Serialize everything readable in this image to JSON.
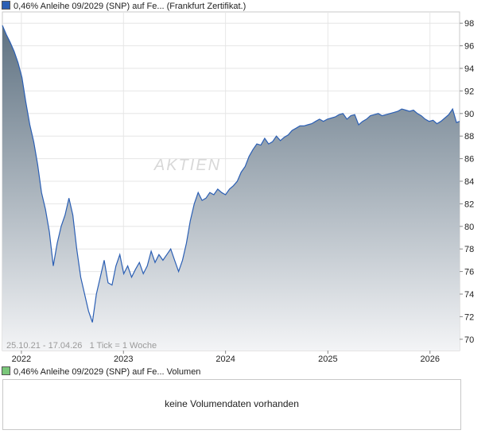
{
  "header": {
    "price_legend": "0,46% Anleihe 09/2029 (SNP) auf Fe... (Frankfurt Zertifikat.)",
    "volume_legend": "0,46% Anleihe 09/2029 (SNP) auf Fe... Volumen"
  },
  "colors": {
    "price_swatch": "#2b5fb4",
    "volume_swatch": "#7ac77a",
    "line": "#2b5fb4",
    "fill_top": "#5f7282",
    "fill_bottom": "#f3f4f6"
  },
  "watermark": "AKTIEN",
  "info_text": "25.10.21 - 17.04.26   1 Tick = 1 Woche",
  "volume_panel": {
    "message": "keine Volumendaten vorhanden"
  },
  "chart_data": {
    "type": "area",
    "x_tick_labels": [
      "2022",
      "2023",
      "2024",
      "2025",
      "2026"
    ],
    "y_ticks": [
      70,
      72,
      74,
      76,
      78,
      80,
      82,
      84,
      86,
      88,
      90,
      92,
      94,
      96,
      98
    ],
    "ylim": [
      69.0,
      99.0
    ],
    "xlim": [
      "2021-10-25",
      "2026-04-17"
    ],
    "grid": true,
    "x": [
      "2021-10-25",
      "2021-11-08",
      "2021-11-22",
      "2021-12-06",
      "2021-12-20",
      "2022-01-03",
      "2022-01-17",
      "2022-01-31",
      "2022-02-14",
      "2022-02-28",
      "2022-03-14",
      "2022-03-28",
      "2022-04-11",
      "2022-04-25",
      "2022-05-09",
      "2022-05-23",
      "2022-06-06",
      "2022-06-20",
      "2022-07-04",
      "2022-07-18",
      "2022-08-01",
      "2022-08-15",
      "2022-08-29",
      "2022-09-12",
      "2022-09-26",
      "2022-10-10",
      "2022-10-24",
      "2022-11-07",
      "2022-11-21",
      "2022-12-05",
      "2022-12-19",
      "2023-01-02",
      "2023-01-16",
      "2023-01-30",
      "2023-02-13",
      "2023-02-27",
      "2023-03-13",
      "2023-03-27",
      "2023-04-10",
      "2023-04-24",
      "2023-05-08",
      "2023-05-22",
      "2023-06-05",
      "2023-06-19",
      "2023-07-03",
      "2023-07-17",
      "2023-07-31",
      "2023-08-14",
      "2023-08-28",
      "2023-09-11",
      "2023-09-25",
      "2023-10-09",
      "2023-10-23",
      "2023-11-06",
      "2023-11-20",
      "2023-12-04",
      "2023-12-18",
      "2024-01-01",
      "2024-01-15",
      "2024-01-29",
      "2024-02-12",
      "2024-02-26",
      "2024-03-11",
      "2024-03-25",
      "2024-04-08",
      "2024-04-22",
      "2024-05-06",
      "2024-05-20",
      "2024-06-03",
      "2024-06-17",
      "2024-07-01",
      "2024-07-15",
      "2024-07-29",
      "2024-08-12",
      "2024-08-26",
      "2024-09-09",
      "2024-09-23",
      "2024-10-07",
      "2024-10-21",
      "2024-11-04",
      "2024-11-18",
      "2024-12-02",
      "2024-12-16",
      "2024-12-30",
      "2025-01-13",
      "2025-01-27",
      "2025-02-10",
      "2025-02-24",
      "2025-03-10",
      "2025-03-24",
      "2025-04-07",
      "2025-04-21",
      "2025-05-05",
      "2025-05-19",
      "2025-06-02",
      "2025-06-16",
      "2025-06-30",
      "2025-07-14",
      "2025-07-28",
      "2025-08-11",
      "2025-08-25",
      "2025-09-08",
      "2025-09-22",
      "2025-10-06",
      "2025-10-20",
      "2025-11-03",
      "2025-11-17",
      "2025-12-01",
      "2025-12-15",
      "2025-12-29",
      "2026-01-12",
      "2026-01-26",
      "2026-02-09",
      "2026-02-23",
      "2026-03-09",
      "2026-03-23",
      "2026-04-06",
      "2026-04-17"
    ],
    "values": [
      97.8,
      97.0,
      96.3,
      95.5,
      94.5,
      93.2,
      91.0,
      89.0,
      87.5,
      85.5,
      83.0,
      81.5,
      79.5,
      76.5,
      78.5,
      80.0,
      81.0,
      82.5,
      81.0,
      78.0,
      75.5,
      74.0,
      72.5,
      71.5,
      74.0,
      75.5,
      77.0,
      75.0,
      74.8,
      76.5,
      77.5,
      75.8,
      76.5,
      75.5,
      76.2,
      76.8,
      75.8,
      76.5,
      77.8,
      76.8,
      77.5,
      77.0,
      77.5,
      78.0,
      77.0,
      76.0,
      77.0,
      78.5,
      80.5,
      82.0,
      83.0,
      82.3,
      82.5,
      83.0,
      82.8,
      83.3,
      83.0,
      82.8,
      83.3,
      83.6,
      84.0,
      84.8,
      85.3,
      86.2,
      86.8,
      87.3,
      87.2,
      87.8,
      87.3,
      87.5,
      88.0,
      87.6,
      87.9,
      88.1,
      88.5,
      88.7,
      88.9,
      88.9,
      89.0,
      89.1,
      89.3,
      89.5,
      89.3,
      89.5,
      89.6,
      89.7,
      89.9,
      90.0,
      89.5,
      89.8,
      89.9,
      89.0,
      89.3,
      89.5,
      89.8,
      89.9,
      90.0,
      89.8,
      89.9,
      90.0,
      90.1,
      90.2,
      90.4,
      90.3,
      90.2,
      90.3,
      90.0,
      89.8,
      89.5,
      89.3,
      89.4,
      89.1,
      89.3,
      89.6,
      89.9,
      90.4,
      89.2,
      89.3
    ]
  }
}
